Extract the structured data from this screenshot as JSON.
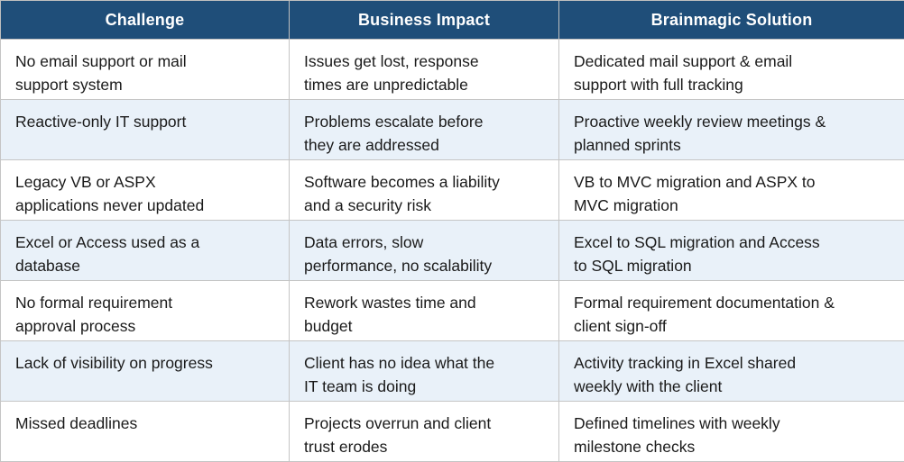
{
  "table": {
    "headers": [
      "Challenge",
      "Business Impact",
      "Brainmagic Solution"
    ],
    "rows": [
      [
        "No email support or mail\nsupport system",
        "Issues get lost, response\ntimes are unpredictable",
        "Dedicated mail support & email\nsupport with full tracking"
      ],
      [
        "Reactive-only IT support",
        "Problems escalate before\nthey are addressed",
        "Proactive weekly review meetings &\nplanned sprints"
      ],
      [
        "Legacy VB or ASPX\napplications never updated",
        "Software becomes a liability\nand a security risk",
        "VB to MVC migration and ASPX to\nMVC migration"
      ],
      [
        "Excel or Access used as a\ndatabase",
        "Data errors, slow\nperformance, no scalability",
        "Excel to SQL migration and Access\nto SQL migration"
      ],
      [
        "No formal requirement\napproval process",
        "Rework wastes time and\nbudget",
        "Formal requirement documentation &\nclient sign-off"
      ],
      [
        "Lack of visibility on progress",
        "Client has no idea what the\nIT team is doing",
        "Activity tracking in Excel shared\nweekly with the client"
      ],
      [
        "Missed deadlines",
        "Projects overrun and client\ntrust erodes",
        "Defined timelines with weekly\nmilestone checks"
      ]
    ]
  },
  "colors": {
    "header_bg": "#1F4E79",
    "header_text": "#FFFFFF",
    "stripe_bg": "#E9F1F9",
    "row_bg": "#FFFFFF",
    "border": "#C5C5C5",
    "body_text": "#1A1A1A"
  }
}
